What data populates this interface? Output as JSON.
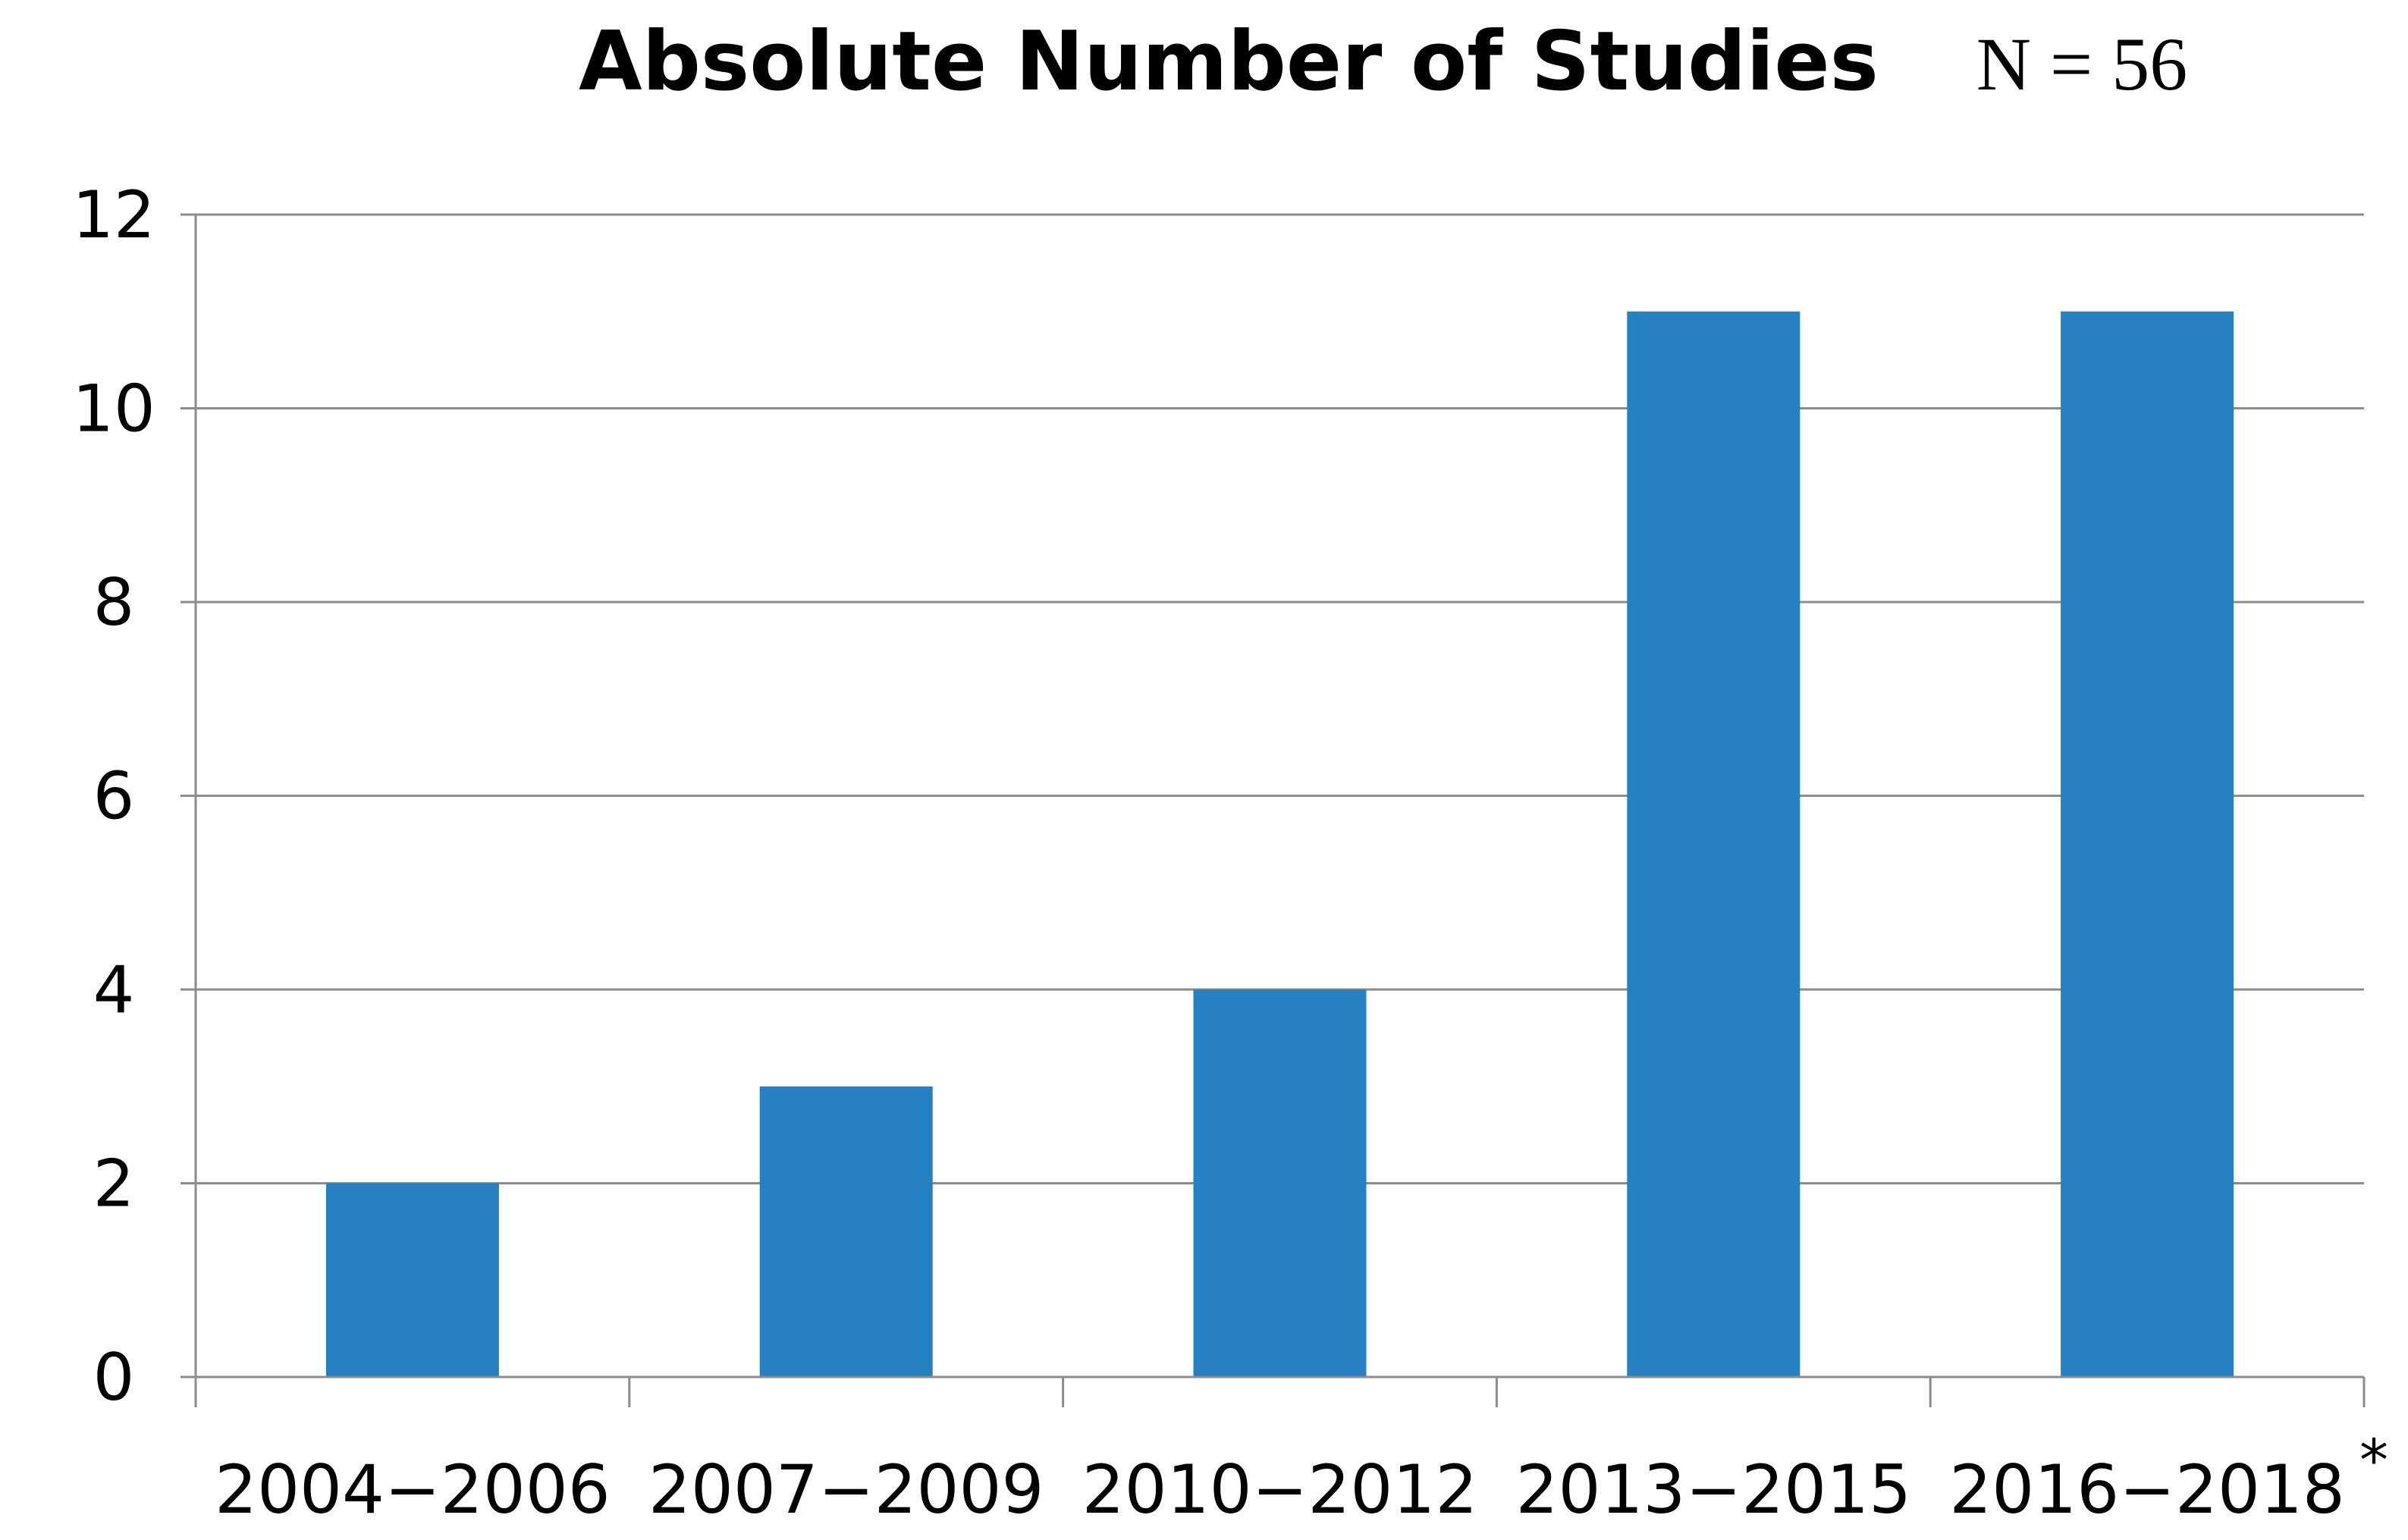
{
  "chart_data": {
    "type": "bar",
    "title": "Absolute Number of Studies",
    "subtitle": "N = 56",
    "categories": [
      "2004−2006",
      "2007−2009",
      "2010−2012",
      "2013−2015",
      "2016−2018"
    ],
    "values": [
      2,
      3,
      4,
      11,
      11
    ],
    "category_note": "*",
    "xlabel": "",
    "ylabel": "",
    "ylim": [
      0,
      12
    ],
    "yticks": [
      0,
      2,
      4,
      6,
      8,
      10,
      12
    ],
    "grid": true,
    "legend": "none",
    "colors": {
      "bar": "#2681C2",
      "grid": "#8C8C8C",
      "axis": "#8C8C8C"
    }
  }
}
